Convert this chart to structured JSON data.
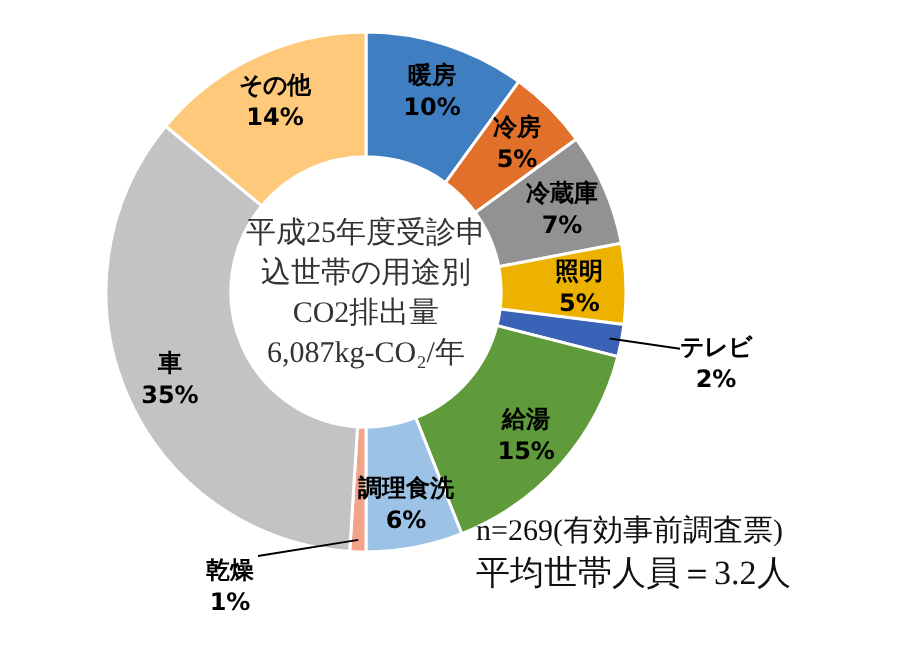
{
  "chart_data": {
    "type": "donut",
    "title": "平成25年度受診申込世帯の用途別CO2排出量",
    "subtitle": "6,087kg-CO₂/年",
    "categories": [
      "暖房",
      "冷房",
      "冷蔵庫",
      "照明",
      "テレビ",
      "給湯",
      "調理食洗",
      "乾燥",
      "車",
      "その他"
    ],
    "values": [
      10,
      5,
      7,
      5,
      2,
      15,
      6,
      1,
      35,
      14
    ],
    "value_labels": [
      "10%",
      "5%",
      "7%",
      "5%",
      "2%",
      "15%",
      "6%",
      "1%",
      "35%",
      "14%"
    ],
    "colors": [
      "#3f7fc1",
      "#e0702a",
      "#929292",
      "#edb100",
      "#3a63b8",
      "#5f9a3b",
      "#9cc2e6",
      "#f2a38a",
      "#c3c3c3",
      "#fec97a"
    ],
    "annotations": [
      "n=269(有効事前調査票)",
      "平均世帯人員＝3.2人"
    ]
  }
}
